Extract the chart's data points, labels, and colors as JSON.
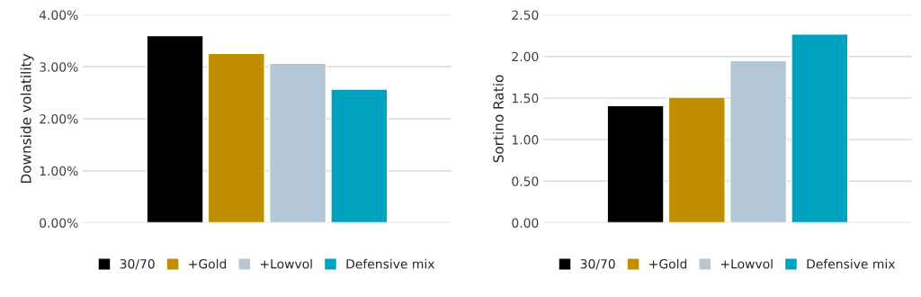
{
  "chart_data": [
    {
      "type": "bar",
      "ylabel": "Downside volatility",
      "categories": [
        null
      ],
      "series": [
        {
          "name": "30/70",
          "color": "#000000",
          "values": [
            3.6
          ]
        },
        {
          "name": "+Gold",
          "color": "#bf8f00",
          "values": [
            3.26
          ]
        },
        {
          "name": "+Lowvol",
          "color": "#b4c7d6",
          "values": [
            3.07
          ]
        },
        {
          "name": "Defensive mix",
          "color": "#00a3bf",
          "values": [
            2.57
          ]
        }
      ],
      "ylim": [
        0,
        4
      ],
      "yticks": [
        {
          "value": 0,
          "label": "0.00%"
        },
        {
          "value": 1,
          "label": "1.00%"
        },
        {
          "value": 2,
          "label": "2.00%"
        },
        {
          "value": 3,
          "label": "3.00%"
        },
        {
          "value": 4,
          "label": "4.00%"
        }
      ],
      "grid": "y",
      "legend": "bottom",
      "tick_labels": "y"
    },
    {
      "type": "bar",
      "ylabel": "Sortino Ratio",
      "categories": [
        null
      ],
      "series": [
        {
          "name": "30/70",
          "color": "#000000",
          "values": [
            1.41
          ]
        },
        {
          "name": "+Gold",
          "color": "#bf8f00",
          "values": [
            1.51
          ]
        },
        {
          "name": "+Lowvol",
          "color": "#b4c7d6",
          "values": [
            1.95
          ]
        },
        {
          "name": "Defensive mix",
          "color": "#00a3bf",
          "values": [
            2.27
          ]
        }
      ],
      "ylim": [
        0,
        2.5
      ],
      "yticks": [
        {
          "value": 0,
          "label": "0.00"
        },
        {
          "value": 0.5,
          "label": "0.50"
        },
        {
          "value": 1,
          "label": "1.00"
        },
        {
          "value": 1.5,
          "label": "1.50"
        },
        {
          "value": 2,
          "label": "2.00"
        },
        {
          "value": 2.5,
          "label": "2.50"
        }
      ],
      "grid": "y",
      "legend": "bottom",
      "tick_labels": "y"
    }
  ]
}
